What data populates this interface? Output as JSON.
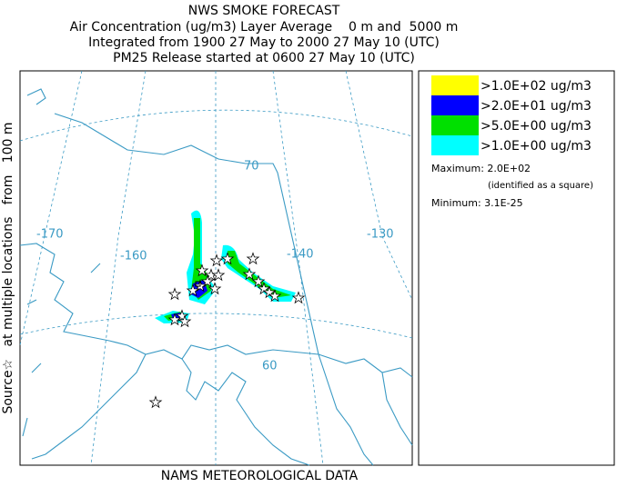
{
  "header": {
    "lines": [
      "NWS SMOKE FORECAST",
      "Air Concentration (ug/m3) Layer Average    0 m and  5000 m",
      "Integrated from 1900 27 May to 2000 27 May 10 (UTC)",
      "PM25 Release started at 0600 27 May 10 (UTC)"
    ]
  },
  "side_label": "Source☆   at multiple locations   from   100 m",
  "footer": "NAMS METEOROLOGICAL DATA",
  "legend": {
    "items": [
      {
        "label": ">1.0E+02 ug/m3",
        "color": "#ffff00"
      },
      {
        "label": ">2.0E+01 ug/m3",
        "color": "#0000ff"
      },
      {
        "label": ">5.0E+00 ug/m3",
        "color": "#00e000"
      },
      {
        "label": ">1.0E+00 ug/m3",
        "color": "#00ffff"
      }
    ],
    "maximum": "Maximum: 2.0E+02",
    "maximum_note": "(identified as a square)",
    "minimum": "Minimum: 3.1E-25"
  },
  "map": {
    "labels": [
      "-170",
      "-160",
      "-140",
      "-130",
      "70",
      "60"
    ]
  }
}
